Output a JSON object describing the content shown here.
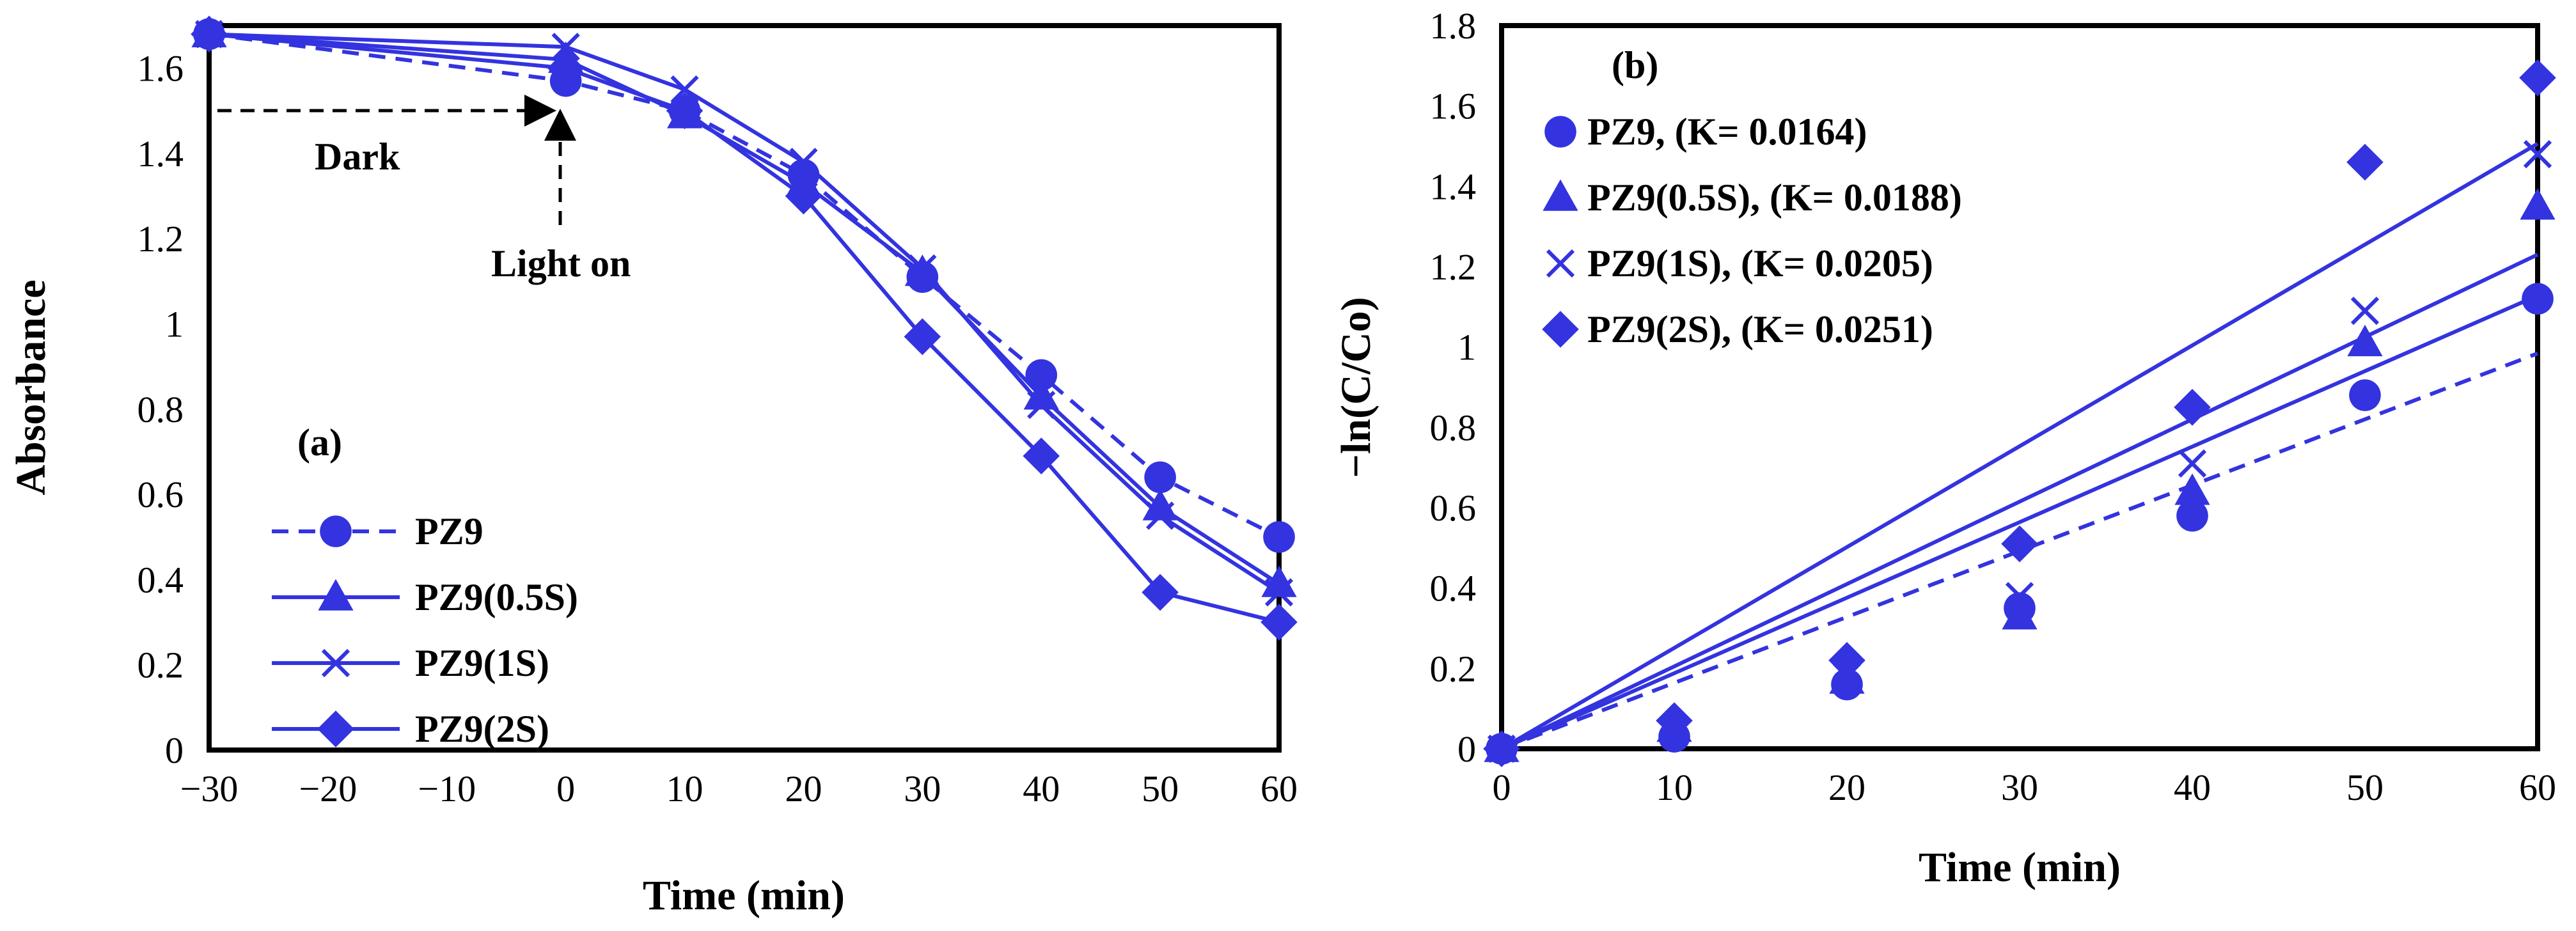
{
  "colors": {
    "series": "#3333e0",
    "axis": "#000000",
    "annotation": "#000000"
  },
  "chart_data": [
    {
      "id": "a",
      "type": "line",
      "panel_label": "(a)",
      "xlabel": "Time (min)",
      "ylabel": "Absorbance",
      "xlim": [
        -30,
        60
      ],
      "ylim": [
        0,
        1.7
      ],
      "xticks": [
        -30,
        -20,
        -10,
        0,
        10,
        20,
        30,
        40,
        50,
        60
      ],
      "xtick_labels": [
        "−30",
        "−20",
        "−10",
        "0",
        "10",
        "20",
        "30",
        "40",
        "50",
        "60"
      ],
      "yticks": [
        0,
        0.2,
        0.4,
        0.6,
        0.8,
        1,
        1.2,
        1.4,
        1.6
      ],
      "ytick_labels": [
        "0",
        "0.2",
        "0.4",
        "0.6",
        "0.8",
        "1",
        "1.2",
        "1.4",
        "1.6"
      ],
      "grid": false,
      "legend_position": "bottom-left",
      "x": [
        -30,
        0,
        10,
        20,
        30,
        40,
        50,
        60
      ],
      "series": [
        {
          "name": "PZ9",
          "marker": "circle",
          "dashed": true,
          "values": [
            1.68,
            1.57,
            1.5,
            1.35,
            1.11,
            0.88,
            0.64,
            0.5
          ]
        },
        {
          "name": "PZ9(0.5S)",
          "marker": "triangle",
          "dashed": false,
          "values": [
            1.68,
            1.62,
            1.49,
            1.33,
            1.12,
            0.83,
            0.57,
            0.39
          ]
        },
        {
          "name": "PZ9(1S)",
          "marker": "x",
          "dashed": false,
          "values": [
            1.68,
            1.65,
            1.55,
            1.38,
            1.13,
            0.81,
            0.55,
            0.37
          ]
        },
        {
          "name": "PZ9(2S)",
          "marker": "diamond",
          "dashed": false,
          "values": [
            1.68,
            1.6,
            1.5,
            1.3,
            0.97,
            0.69,
            0.37,
            0.3
          ]
        }
      ],
      "annotations": {
        "dark": "Dark",
        "light_on": "Light on"
      }
    },
    {
      "id": "b",
      "type": "scatter",
      "panel_label": "(b)",
      "xlabel": "Time (min)",
      "ylabel": "−ln(C/Co)",
      "xlim": [
        0,
        60
      ],
      "ylim": [
        0,
        1.8
      ],
      "xticks": [
        0,
        10,
        20,
        30,
        40,
        50,
        60
      ],
      "xtick_labels": [
        "0",
        "10",
        "20",
        "30",
        "40",
        "50",
        "60"
      ],
      "yticks": [
        0,
        0.2,
        0.4,
        0.6,
        0.8,
        1,
        1.2,
        1.4,
        1.6,
        1.8
      ],
      "ytick_labels": [
        "0",
        "0.2",
        "0.4",
        "0.6",
        "0.8",
        "1",
        "1.2",
        "1.4",
        "1.6",
        "1.8"
      ],
      "grid": false,
      "legend_position": "top-left",
      "x": [
        0,
        10,
        20,
        30,
        40,
        50,
        60
      ],
      "series": [
        {
          "name": "PZ9, (K= 0.0164)",
          "k": 0.0164,
          "marker": "circle",
          "dashed": true,
          "values": [
            0,
            0.03,
            0.16,
            0.35,
            0.58,
            0.88,
            1.12
          ]
        },
        {
          "name": "PZ9(0.5S), (K= 0.0188)",
          "k": 0.0188,
          "marker": "triangle",
          "dashed": false,
          "values": [
            0,
            0.05,
            0.17,
            0.33,
            0.64,
            1.01,
            1.35
          ]
        },
        {
          "name": "PZ9(1S), (K= 0.0205)",
          "k": 0.0205,
          "marker": "x",
          "dashed": false,
          "values": [
            0,
            0.05,
            0.18,
            0.38,
            0.71,
            1.09,
            1.48
          ]
        },
        {
          "name": "PZ9(2S), (K= 0.0251)",
          "k": 0.0251,
          "marker": "diamond",
          "dashed": false,
          "values": [
            0,
            0.07,
            0.22,
            0.51,
            0.85,
            1.46,
            1.67
          ]
        }
      ]
    }
  ]
}
